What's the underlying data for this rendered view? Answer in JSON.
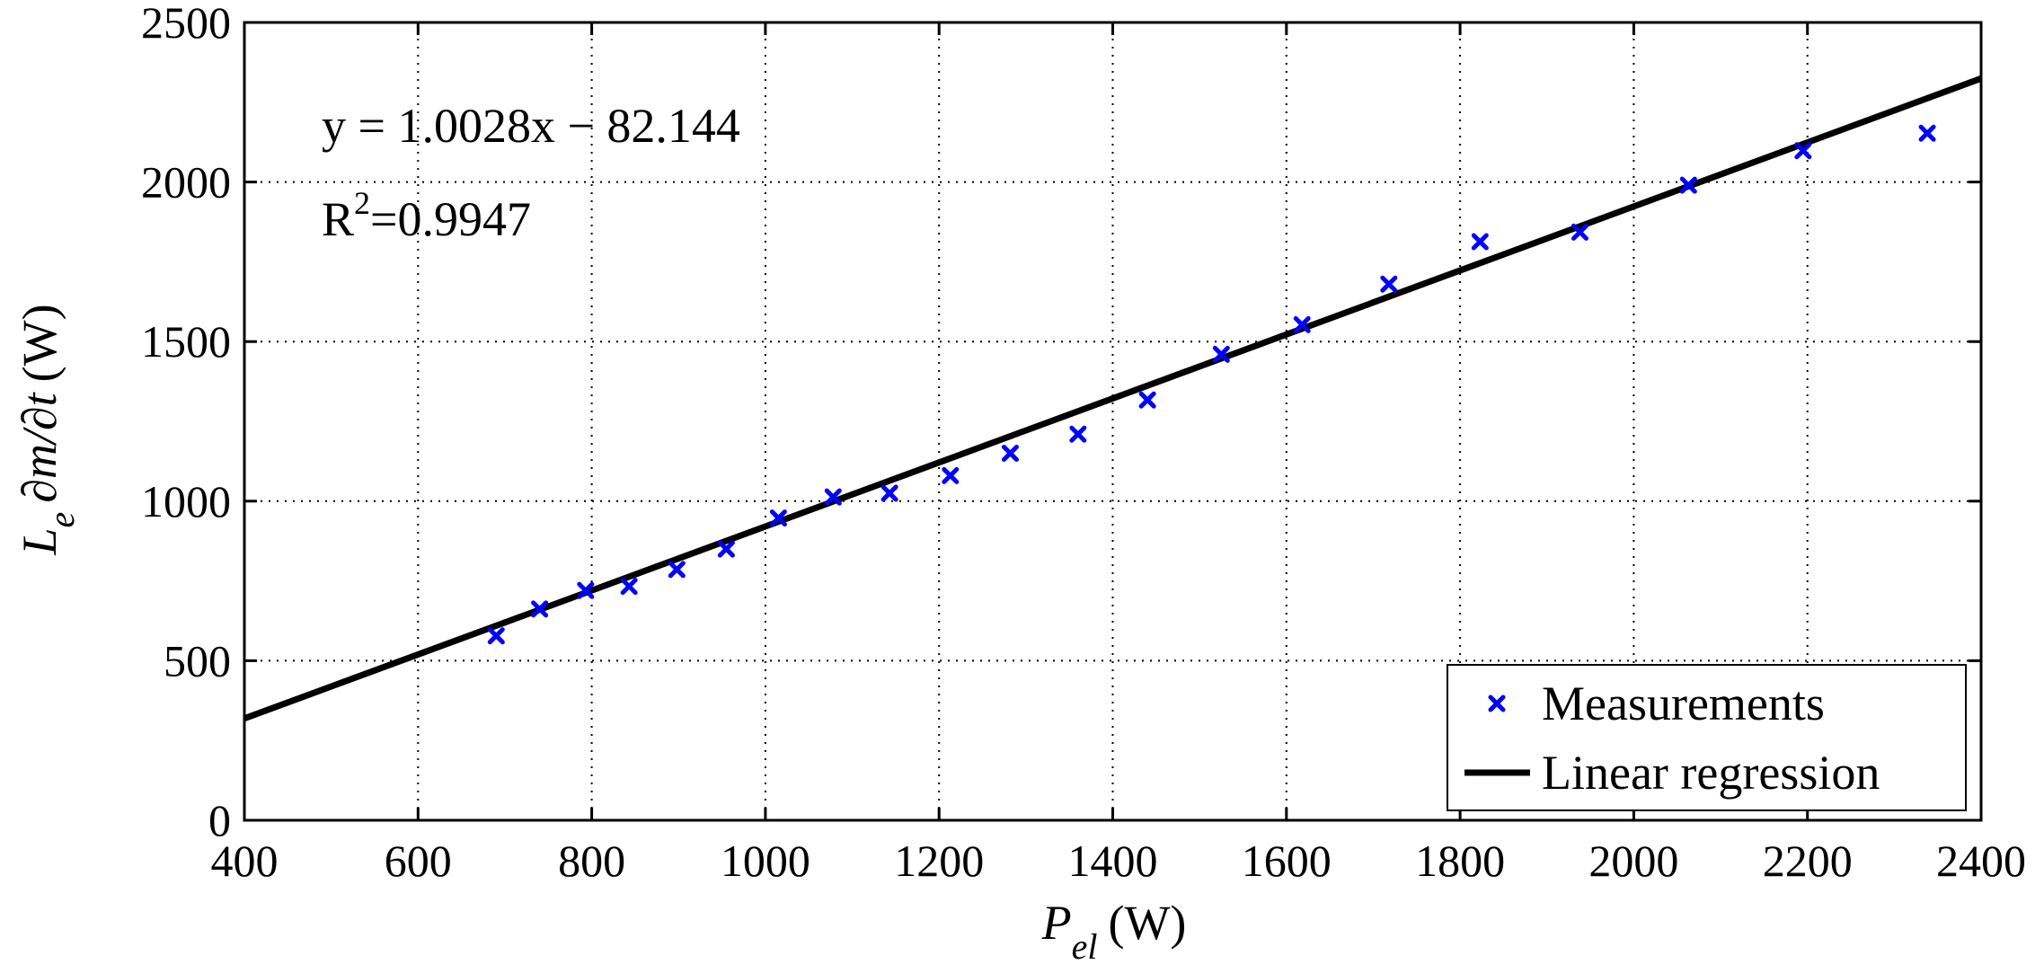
{
  "chart_data": {
    "type": "scatter",
    "title": "",
    "xlabel": {
      "main": "P",
      "sub": "el",
      "unit": "(W)"
    },
    "ylabel": {
      "main": "L",
      "sub": "e",
      "mid": "∂m/∂t",
      "unit": "(W)"
    },
    "xlim": [
      400,
      2400
    ],
    "ylim": [
      0,
      2500
    ],
    "xticks": [
      400,
      600,
      800,
      1000,
      1200,
      1400,
      1600,
      1800,
      2000,
      2200,
      2400
    ],
    "yticks": [
      0,
      500,
      1000,
      1500,
      2000,
      2500
    ],
    "grid": true,
    "legend_position": "bottom-right",
    "series": [
      {
        "name": "Measurements",
        "kind": "scatter",
        "marker": "x",
        "color": "#0000ff",
        "x": [
          690,
          740,
          793,
          843,
          898,
          955,
          1015,
          1078,
          1143,
          1213,
          1282,
          1360,
          1440,
          1525,
          1618,
          1718,
          1823,
          1938,
          2063,
          2195,
          2338
        ],
        "y": [
          578,
          662,
          720,
          733,
          786,
          850,
          947,
          1013,
          1025,
          1080,
          1150,
          1210,
          1317,
          1460,
          1553,
          1680,
          1813,
          1843,
          1990,
          2098,
          2153
        ]
      },
      {
        "name": "Linear regression",
        "kind": "line",
        "color": "#000000",
        "slope": 1.0028,
        "intercept": -82.144
      }
    ],
    "annotations": {
      "equation": "y = 1.0028x − 82.144",
      "r2_prefix": "R",
      "r2_sup": "2",
      "r2_value": "=0.9947"
    }
  }
}
